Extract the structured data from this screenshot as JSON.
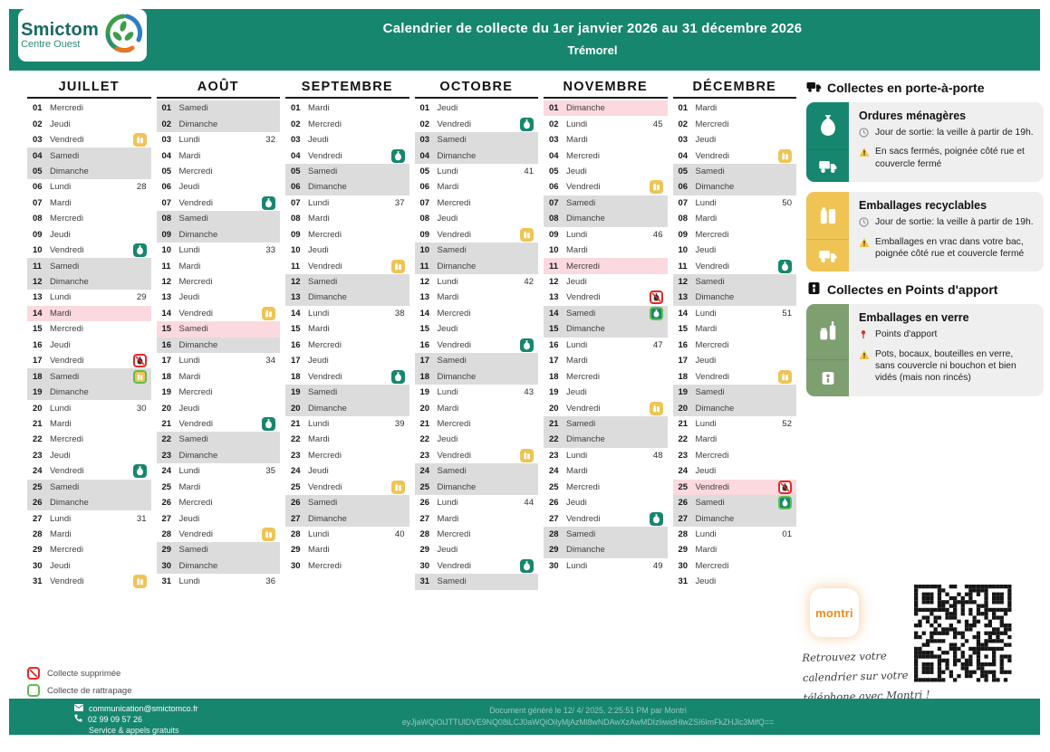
{
  "header": {
    "logo_line1": "Smictom",
    "logo_line2": "Centre Ouest",
    "title": "Calendrier de collecte du 1er janvier 2026 au 31 décembre 2026",
    "subtitle": "Trémorel"
  },
  "months": [
    {
      "name": "JUILLET",
      "days": [
        {
          "n": "01",
          "d": "Mercredi"
        },
        {
          "n": "02",
          "d": "Jeudi"
        },
        {
          "n": "03",
          "d": "Vendredi",
          "icon": "y"
        },
        {
          "n": "04",
          "d": "Samedi",
          "bg": "we"
        },
        {
          "n": "05",
          "d": "Dimanche",
          "bg": "we"
        },
        {
          "n": "06",
          "d": "Lundi",
          "wk": "28"
        },
        {
          "n": "07",
          "d": "Mardi"
        },
        {
          "n": "08",
          "d": "Mercredi"
        },
        {
          "n": "09",
          "d": "Jeudi"
        },
        {
          "n": "10",
          "d": "Vendredi",
          "icon": "g"
        },
        {
          "n": "11",
          "d": "Samedi",
          "bg": "we"
        },
        {
          "n": "12",
          "d": "Dimanche",
          "bg": "we"
        },
        {
          "n": "13",
          "d": "Lundi",
          "wk": "29"
        },
        {
          "n": "14",
          "d": "Mardi",
          "bg": "hol"
        },
        {
          "n": "15",
          "d": "Mercredi"
        },
        {
          "n": "16",
          "d": "Jeudi"
        },
        {
          "n": "17",
          "d": "Vendredi",
          "icon": "x"
        },
        {
          "n": "18",
          "d": "Samedi",
          "bg": "we",
          "icon": "ry"
        },
        {
          "n": "19",
          "d": "Dimanche",
          "bg": "we"
        },
        {
          "n": "20",
          "d": "Lundi",
          "wk": "30"
        },
        {
          "n": "21",
          "d": "Mardi"
        },
        {
          "n": "22",
          "d": "Mercredi"
        },
        {
          "n": "23",
          "d": "Jeudi"
        },
        {
          "n": "24",
          "d": "Vendredi",
          "icon": "g"
        },
        {
          "n": "25",
          "d": "Samedi",
          "bg": "we"
        },
        {
          "n": "26",
          "d": "Dimanche",
          "bg": "we"
        },
        {
          "n": "27",
          "d": "Lundi",
          "wk": "31"
        },
        {
          "n": "28",
          "d": "Mardi"
        },
        {
          "n": "29",
          "d": "Mercredi"
        },
        {
          "n": "30",
          "d": "Jeudi"
        },
        {
          "n": "31",
          "d": "Vendredi",
          "icon": "y"
        }
      ]
    },
    {
      "name": "AOÛT",
      "days": [
        {
          "n": "01",
          "d": "Samedi",
          "bg": "we"
        },
        {
          "n": "02",
          "d": "Dimanche",
          "bg": "we"
        },
        {
          "n": "03",
          "d": "Lundi",
          "wk": "32"
        },
        {
          "n": "04",
          "d": "Mardi"
        },
        {
          "n": "05",
          "d": "Mercredi"
        },
        {
          "n": "06",
          "d": "Jeudi"
        },
        {
          "n": "07",
          "d": "Vendredi",
          "icon": "g"
        },
        {
          "n": "08",
          "d": "Samedi",
          "bg": "we"
        },
        {
          "n": "09",
          "d": "Dimanche",
          "bg": "we"
        },
        {
          "n": "10",
          "d": "Lundi",
          "wk": "33"
        },
        {
          "n": "11",
          "d": "Mardi"
        },
        {
          "n": "12",
          "d": "Mercredi"
        },
        {
          "n": "13",
          "d": "Jeudi"
        },
        {
          "n": "14",
          "d": "Vendredi",
          "icon": "y"
        },
        {
          "n": "15",
          "d": "Samedi",
          "bg": "hol"
        },
        {
          "n": "16",
          "d": "Dimanche",
          "bg": "we"
        },
        {
          "n": "17",
          "d": "Lundi",
          "wk": "34"
        },
        {
          "n": "18",
          "d": "Mardi"
        },
        {
          "n": "19",
          "d": "Mercredi"
        },
        {
          "n": "20",
          "d": "Jeudi"
        },
        {
          "n": "21",
          "d": "Vendredi",
          "icon": "g"
        },
        {
          "n": "22",
          "d": "Samedi",
          "bg": "we"
        },
        {
          "n": "23",
          "d": "Dimanche",
          "bg": "we"
        },
        {
          "n": "24",
          "d": "Lundi",
          "wk": "35"
        },
        {
          "n": "25",
          "d": "Mardi"
        },
        {
          "n": "26",
          "d": "Mercredi"
        },
        {
          "n": "27",
          "d": "Jeudi"
        },
        {
          "n": "28",
          "d": "Vendredi",
          "icon": "y"
        },
        {
          "n": "29",
          "d": "Samedi",
          "bg": "we"
        },
        {
          "n": "30",
          "d": "Dimanche",
          "bg": "we"
        },
        {
          "n": "31",
          "d": "Lundi",
          "wk": "36"
        }
      ]
    },
    {
      "name": "SEPTEMBRE",
      "days": [
        {
          "n": "01",
          "d": "Mardi"
        },
        {
          "n": "02",
          "d": "Mercredi"
        },
        {
          "n": "03",
          "d": "Jeudi"
        },
        {
          "n": "04",
          "d": "Vendredi",
          "icon": "g"
        },
        {
          "n": "05",
          "d": "Samedi",
          "bg": "we"
        },
        {
          "n": "06",
          "d": "Dimanche",
          "bg": "we"
        },
        {
          "n": "07",
          "d": "Lundi",
          "wk": "37"
        },
        {
          "n": "08",
          "d": "Mardi"
        },
        {
          "n": "09",
          "d": "Mercredi"
        },
        {
          "n": "10",
          "d": "Jeudi"
        },
        {
          "n": "11",
          "d": "Vendredi",
          "icon": "y"
        },
        {
          "n": "12",
          "d": "Samedi",
          "bg": "we"
        },
        {
          "n": "13",
          "d": "Dimanche",
          "bg": "we"
        },
        {
          "n": "14",
          "d": "Lundi",
          "wk": "38"
        },
        {
          "n": "15",
          "d": "Mardi"
        },
        {
          "n": "16",
          "d": "Mercredi"
        },
        {
          "n": "17",
          "d": "Jeudi"
        },
        {
          "n": "18",
          "d": "Vendredi",
          "icon": "g"
        },
        {
          "n": "19",
          "d": "Samedi",
          "bg": "we"
        },
        {
          "n": "20",
          "d": "Dimanche",
          "bg": "we"
        },
        {
          "n": "21",
          "d": "Lundi",
          "wk": "39"
        },
        {
          "n": "22",
          "d": "Mardi"
        },
        {
          "n": "23",
          "d": "Mercredi"
        },
        {
          "n": "24",
          "d": "Jeudi"
        },
        {
          "n": "25",
          "d": "Vendredi",
          "icon": "y"
        },
        {
          "n": "26",
          "d": "Samedi",
          "bg": "we"
        },
        {
          "n": "27",
          "d": "Dimanche",
          "bg": "we"
        },
        {
          "n": "28",
          "d": "Lundi",
          "wk": "40"
        },
        {
          "n": "29",
          "d": "Mardi"
        },
        {
          "n": "30",
          "d": "Mercredi"
        }
      ]
    },
    {
      "name": "OCTOBRE",
      "days": [
        {
          "n": "01",
          "d": "Jeudi"
        },
        {
          "n": "02",
          "d": "Vendredi",
          "icon": "g"
        },
        {
          "n": "03",
          "d": "Samedi",
          "bg": "we"
        },
        {
          "n": "04",
          "d": "Dimanche",
          "bg": "we"
        },
        {
          "n": "05",
          "d": "Lundi",
          "wk": "41"
        },
        {
          "n": "06",
          "d": "Mardi"
        },
        {
          "n": "07",
          "d": "Mercredi"
        },
        {
          "n": "08",
          "d": "Jeudi"
        },
        {
          "n": "09",
          "d": "Vendredi",
          "icon": "y"
        },
        {
          "n": "10",
          "d": "Samedi",
          "bg": "we"
        },
        {
          "n": "11",
          "d": "Dimanche",
          "bg": "we"
        },
        {
          "n": "12",
          "d": "Lundi",
          "wk": "42"
        },
        {
          "n": "13",
          "d": "Mardi"
        },
        {
          "n": "14",
          "d": "Mercredi"
        },
        {
          "n": "15",
          "d": "Jeudi"
        },
        {
          "n": "16",
          "d": "Vendredi",
          "icon": "g"
        },
        {
          "n": "17",
          "d": "Samedi",
          "bg": "we"
        },
        {
          "n": "18",
          "d": "Dimanche",
          "bg": "we"
        },
        {
          "n": "19",
          "d": "Lundi",
          "wk": "43"
        },
        {
          "n": "20",
          "d": "Mardi"
        },
        {
          "n": "21",
          "d": "Mercredi"
        },
        {
          "n": "22",
          "d": "Jeudi"
        },
        {
          "n": "23",
          "d": "Vendredi",
          "icon": "y"
        },
        {
          "n": "24",
          "d": "Samedi",
          "bg": "we"
        },
        {
          "n": "25",
          "d": "Dimanche",
          "bg": "we"
        },
        {
          "n": "26",
          "d": "Lundi",
          "wk": "44"
        },
        {
          "n": "27",
          "d": "Mardi"
        },
        {
          "n": "28",
          "d": "Mercredi"
        },
        {
          "n": "29",
          "d": "Jeudi"
        },
        {
          "n": "30",
          "d": "Vendredi",
          "icon": "g"
        },
        {
          "n": "31",
          "d": "Samedi",
          "bg": "we"
        }
      ]
    },
    {
      "name": "NOVEMBRE",
      "days": [
        {
          "n": "01",
          "d": "Dimanche",
          "bg": "hol"
        },
        {
          "n": "02",
          "d": "Lundi",
          "wk": "45"
        },
        {
          "n": "03",
          "d": "Mardi"
        },
        {
          "n": "04",
          "d": "Mercredi"
        },
        {
          "n": "05",
          "d": "Jeudi"
        },
        {
          "n": "06",
          "d": "Vendredi",
          "icon": "y"
        },
        {
          "n": "07",
          "d": "Samedi",
          "bg": "we"
        },
        {
          "n": "08",
          "d": "Dimanche",
          "bg": "we"
        },
        {
          "n": "09",
          "d": "Lundi",
          "wk": "46"
        },
        {
          "n": "10",
          "d": "Mardi"
        },
        {
          "n": "11",
          "d": "Mercredi",
          "bg": "hol"
        },
        {
          "n": "12",
          "d": "Jeudi"
        },
        {
          "n": "13",
          "d": "Vendredi",
          "icon": "x"
        },
        {
          "n": "14",
          "d": "Samedi",
          "bg": "we",
          "icon": "rg"
        },
        {
          "n": "15",
          "d": "Dimanche",
          "bg": "we"
        },
        {
          "n": "16",
          "d": "Lundi",
          "wk": "47"
        },
        {
          "n": "17",
          "d": "Mardi"
        },
        {
          "n": "18",
          "d": "Mercredi"
        },
        {
          "n": "19",
          "d": "Jeudi"
        },
        {
          "n": "20",
          "d": "Vendredi",
          "icon": "y"
        },
        {
          "n": "21",
          "d": "Samedi",
          "bg": "we"
        },
        {
          "n": "22",
          "d": "Dimanche",
          "bg": "we"
        },
        {
          "n": "23",
          "d": "Lundi",
          "wk": "48"
        },
        {
          "n": "24",
          "d": "Mardi"
        },
        {
          "n": "25",
          "d": "Mercredi"
        },
        {
          "n": "26",
          "d": "Jeudi"
        },
        {
          "n": "27",
          "d": "Vendredi",
          "icon": "g"
        },
        {
          "n": "28",
          "d": "Samedi",
          "bg": "we"
        },
        {
          "n": "29",
          "d": "Dimanche",
          "bg": "we"
        },
        {
          "n": "30",
          "d": "Lundi",
          "wk": "49"
        }
      ]
    },
    {
      "name": "DÉCEMBRE",
      "days": [
        {
          "n": "01",
          "d": "Mardi"
        },
        {
          "n": "02",
          "d": "Mercredi"
        },
        {
          "n": "03",
          "d": "Jeudi"
        },
        {
          "n": "04",
          "d": "Vendredi",
          "icon": "y"
        },
        {
          "n": "05",
          "d": "Samedi",
          "bg": "we"
        },
        {
          "n": "06",
          "d": "Dimanche",
          "bg": "we"
        },
        {
          "n": "07",
          "d": "Lundi",
          "wk": "50"
        },
        {
          "n": "08",
          "d": "Mardi"
        },
        {
          "n": "09",
          "d": "Mercredi"
        },
        {
          "n": "10",
          "d": "Jeudi"
        },
        {
          "n": "11",
          "d": "Vendredi",
          "icon": "g"
        },
        {
          "n": "12",
          "d": "Samedi",
          "bg": "we"
        },
        {
          "n": "13",
          "d": "Dimanche",
          "bg": "we"
        },
        {
          "n": "14",
          "d": "Lundi",
          "wk": "51"
        },
        {
          "n": "15",
          "d": "Mardi"
        },
        {
          "n": "16",
          "d": "Mercredi"
        },
        {
          "n": "17",
          "d": "Jeudi"
        },
        {
          "n": "18",
          "d": "Vendredi",
          "icon": "y"
        },
        {
          "n": "19",
          "d": "Samedi",
          "bg": "we"
        },
        {
          "n": "20",
          "d": "Dimanche",
          "bg": "we"
        },
        {
          "n": "21",
          "d": "Lundi",
          "wk": "52"
        },
        {
          "n": "22",
          "d": "Mardi"
        },
        {
          "n": "23",
          "d": "Mercredi"
        },
        {
          "n": "24",
          "d": "Jeudi"
        },
        {
          "n": "25",
          "d": "Vendredi",
          "bg": "hol",
          "icon": "x"
        },
        {
          "n": "26",
          "d": "Samedi",
          "bg": "we",
          "icon": "rg"
        },
        {
          "n": "27",
          "d": "Dimanche",
          "bg": "we"
        },
        {
          "n": "28",
          "d": "Lundi",
          "wk": "01"
        },
        {
          "n": "29",
          "d": "Mardi"
        },
        {
          "n": "30",
          "d": "Mercredi"
        },
        {
          "n": "31",
          "d": "Jeudi"
        }
      ]
    }
  ],
  "sidebar": {
    "section1": {
      "title": "Collectes en porte-à-porte",
      "cards": [
        {
          "title": "Ordures ménagères",
          "strip_color": "#17866F",
          "icon": "om",
          "bullets": [
            {
              "type": "clock",
              "text": "Jour de sortie: la veille à partir de 19h."
            },
            {
              "type": "warning",
              "text": "En sacs fermés, poignée côté rue et couvercle fermé"
            }
          ]
        },
        {
          "title": "Emballages recyclables",
          "strip_color": "#EFC455",
          "icon": "recy",
          "bullets": [
            {
              "type": "clock",
              "text": "Jour de sortie: la veille à partir de 19h."
            },
            {
              "type": "warning",
              "text": "Emballages en vrac dans votre bac, poignée côté rue et couvercle fermé"
            }
          ]
        }
      ]
    },
    "section2": {
      "title": "Collectes en Points d'apport",
      "cards": [
        {
          "title": "Emballages en verre",
          "strip_color": "#7E9F70",
          "icon": "verre",
          "bullets": [
            {
              "type": "pin",
              "text": "Points d'apport"
            },
            {
              "type": "warning",
              "text": "Pots, bocaux, bouteilles en verre, sans couvercle ni bouchon et bien vidés (mais non rincés)"
            }
          ]
        }
      ]
    }
  },
  "legend": {
    "items": [
      {
        "type": "cancelled",
        "label": "Collecte supprimée"
      },
      {
        "type": "makeup",
        "label": "Collecte de rattrapage"
      }
    ]
  },
  "montri": {
    "app_label": "montri",
    "line1": "Retrouvez votre",
    "line2": "calendrier sur votre",
    "line3": "téléphone avec Montri !"
  },
  "footer": {
    "email": "communication@smictomco.fr",
    "phone": "02 99 09 57 26",
    "note": "Service & appels gratuits",
    "generated_line": "Document généré le 12/ 4/ 2025, 2:25:51 PM par Montri",
    "hash": "eyJjaWQiOiJTTUlDVE9NQ08iLCJ0aWQiOiIyMjAzMl8wNDAwXzAwMDIzIiwidHlwZSI6ImFkZHJlc3MifQ=="
  },
  "colors": {
    "brand_teal": "#17866F",
    "recyclables_yellow": "#EFC455",
    "glass_sage": "#7E9F70",
    "weekend_gray": "#DCDCDC",
    "holiday_pink": "#FBD9DE",
    "cancelled_red": "#E22A28",
    "makeup_green": "#5CBF4E"
  }
}
